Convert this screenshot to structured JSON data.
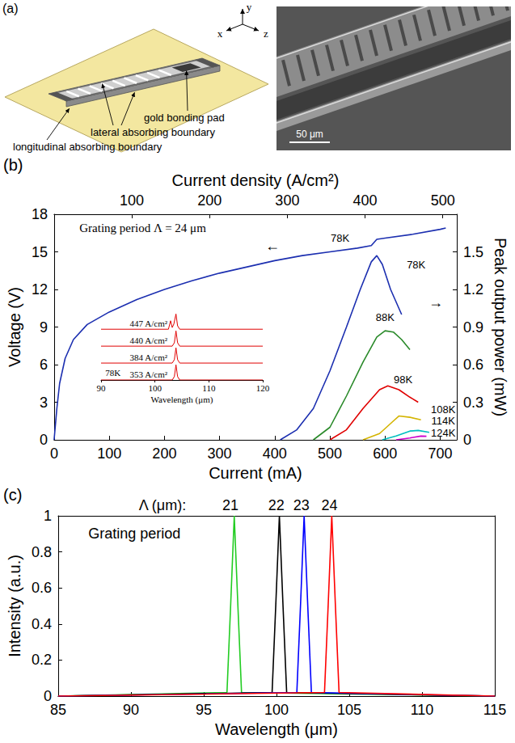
{
  "diagram": {
    "panel": "(a)",
    "axes": [
      "x",
      "y",
      "z"
    ],
    "labels": [
      "gold bonding pad",
      "lateral absorbing boundary",
      "longitudinal absorbing boundary"
    ],
    "scale_bar": "50 μm"
  },
  "chart_data": [
    {
      "panel": "(b)",
      "type": "line",
      "x_label": "Current (mA)",
      "x2_label": "Current density (A/cm²)",
      "y_label": "Voltage (V)",
      "y2_label": "Peak output power (mW)",
      "xlim": [
        0,
        730
      ],
      "xticks": [
        0,
        100,
        200,
        300,
        400,
        500,
        600,
        700
      ],
      "x2lim": [
        0,
        518
      ],
      "x2ticks": [
        100,
        200,
        300,
        400,
        500
      ],
      "ylim": [
        0,
        18
      ],
      "yticks": [
        0,
        3,
        6,
        9,
        12,
        15,
        18
      ],
      "y2lim": [
        0,
        1.8
      ],
      "y2ticks": [
        0,
        0.3,
        0.6,
        0.9,
        1.2,
        1.5
      ],
      "annotations": [
        {
          "text": "Grating period Λ = 24 μm",
          "x": 170,
          "y": 16.9
        },
        {
          "text": "←",
          "x": 400,
          "y": 15.5
        },
        {
          "text": "→",
          "x": 690,
          "y": 1.1,
          "axis": "y2"
        }
      ],
      "series": [
        {
          "name": "78K",
          "color": "#1c2fb0",
          "label_at": [
            520,
            16.1
          ],
          "x": [
            0,
            5,
            10,
            20,
            35,
            60,
            100,
            150,
            200,
            250,
            300,
            350,
            400,
            450,
            500,
            550,
            575,
            585,
            600,
            650,
            700,
            710
          ],
          "values": [
            0,
            2.5,
            4.5,
            6.5,
            8,
            9.2,
            10.2,
            11.2,
            12,
            12.7,
            13.3,
            13.8,
            14.3,
            14.7,
            15,
            15.3,
            15.5,
            16,
            16.1,
            16.4,
            16.8,
            16.9
          ]
        },
        {
          "name": "78K",
          "color": "#1c2fb0",
          "axis": "y2",
          "label_at": [
            655,
            1.4
          ],
          "x": [
            410,
            440,
            470,
            500,
            530,
            555,
            575,
            585,
            595,
            610,
            630
          ],
          "values": [
            0,
            0.08,
            0.25,
            0.55,
            0.9,
            1.2,
            1.42,
            1.47,
            1.4,
            1.2,
            1.0
          ]
        },
        {
          "name": "88K",
          "color": "#2a8a2a",
          "axis": "y2",
          "label_at": [
            600,
            0.98
          ],
          "x": [
            470,
            500,
            530,
            560,
            585,
            600,
            615,
            630,
            645
          ],
          "values": [
            0,
            0.1,
            0.35,
            0.62,
            0.82,
            0.87,
            0.86,
            0.8,
            0.72
          ]
        },
        {
          "name": "98K",
          "color": "#e00000",
          "axis": "y2",
          "label_at": [
            632,
            0.48
          ],
          "x": [
            500,
            530,
            560,
            590,
            605,
            625,
            645,
            660
          ],
          "values": [
            0,
            0.08,
            0.25,
            0.4,
            0.43,
            0.4,
            0.34,
            0.3
          ]
        },
        {
          "name": "108K",
          "color": "#d4b400",
          "axis": "y2",
          "label_at": [
            703,
            0.24
          ],
          "x": [
            560,
            590,
            615,
            625,
            645,
            665
          ],
          "values": [
            0,
            0.05,
            0.15,
            0.19,
            0.18,
            0.16
          ]
        },
        {
          "name": "114K",
          "color": "#00bfbf",
          "axis": "y2",
          "label_at": [
            703,
            0.15
          ],
          "x": [
            595,
            620,
            645,
            660,
            680
          ],
          "values": [
            0,
            0.03,
            0.07,
            0.075,
            0.06
          ]
        },
        {
          "name": "124K",
          "color": "#cc00cc",
          "axis": "y2",
          "label_at": [
            703,
            0.058
          ],
          "x": [
            620,
            645,
            665,
            675
          ],
          "values": [
            0,
            0.015,
            0.03,
            0.028
          ]
        }
      ],
      "inset": {
        "type": "line",
        "x_label": "Wavelength (μm)",
        "xlim": [
          90,
          120
        ],
        "xticks": [
          90,
          100,
          110,
          120
        ],
        "ylim": [
          0,
          4.3
        ],
        "tick_labels": "x",
        "annotations": [
          {
            "text": "78K",
            "x": 92.2,
            "y": 0.45
          }
        ],
        "series": [
          {
            "name": "447 A/cm²",
            "color": "#e00000",
            "x": [
              90,
              102.5,
              102.9,
              103.2,
              103.5,
              103.9,
              104.2,
              104.6,
              120
            ],
            "values": [
              3,
              3,
              3.5,
              3.1,
              3.3,
              3.9,
              3.2,
              3,
              3
            ]
          },
          {
            "name": "440 A/cm²",
            "color": "#e00000",
            "x": [
              90,
              103.2,
              103.6,
              103.9,
              104.2,
              104.6,
              120
            ],
            "values": [
              2,
              2,
              2.2,
              2.9,
              2.2,
              2,
              2
            ]
          },
          {
            "name": "384 A/cm²",
            "color": "#e00000",
            "x": [
              90,
              103.2,
              103.6,
              103.9,
              104.2,
              104.6,
              120
            ],
            "values": [
              1,
              1,
              1.2,
              1.9,
              1.2,
              1,
              1
            ]
          },
          {
            "name": "353 A/cm²",
            "color": "#e00000",
            "x": [
              90,
              103.2,
              103.6,
              103.9,
              104.2,
              104.6,
              120
            ],
            "values": [
              0,
              0,
              0.2,
              0.9,
              0.2,
              0,
              0
            ]
          }
        ]
      }
    },
    {
      "panel": "(c)",
      "type": "line",
      "x_label": "Wavelength (μm)",
      "y_label": "Intensity (a.u.)",
      "xlim": [
        85,
        115
      ],
      "xticks": [
        85,
        90,
        95,
        100,
        105,
        110,
        115
      ],
      "ylim": [
        0,
        1
      ],
      "yticks": [
        0,
        0.2,
        0.4,
        0.6,
        0.8,
        1
      ],
      "annotations": [
        {
          "text": "Grating period",
          "x": 90.6,
          "y": 0.9
        },
        {
          "text": "Λ (μm):",
          "x": 92.5,
          "y": 1.06
        }
      ],
      "series": [
        {
          "name": "21",
          "color": "#22cc22",
          "x": [
            85,
            96.6,
            96.85,
            97.1,
            97.35,
            97.6,
            115
          ],
          "values": [
            0,
            0.02,
            0.5,
            1,
            0.5,
            0.02,
            0
          ]
        },
        {
          "name": "22",
          "color": "#000000",
          "x": [
            85,
            99.7,
            99.95,
            100.2,
            100.45,
            100.7,
            115
          ],
          "values": [
            0,
            0.02,
            0.5,
            1,
            0.5,
            0.02,
            0
          ]
        },
        {
          "name": "23",
          "color": "#0000ff",
          "x": [
            85,
            101.4,
            101.65,
            101.9,
            102.15,
            102.4,
            115
          ],
          "values": [
            0,
            0.02,
            0.5,
            1,
            0.5,
            0.02,
            0
          ]
        },
        {
          "name": "24",
          "color": "#ff0000",
          "x": [
            85,
            103.3,
            103.55,
            103.8,
            104.05,
            104.3,
            115
          ],
          "values": [
            0,
            0.02,
            0.5,
            1,
            0.5,
            0.02,
            0
          ]
        }
      ]
    }
  ]
}
